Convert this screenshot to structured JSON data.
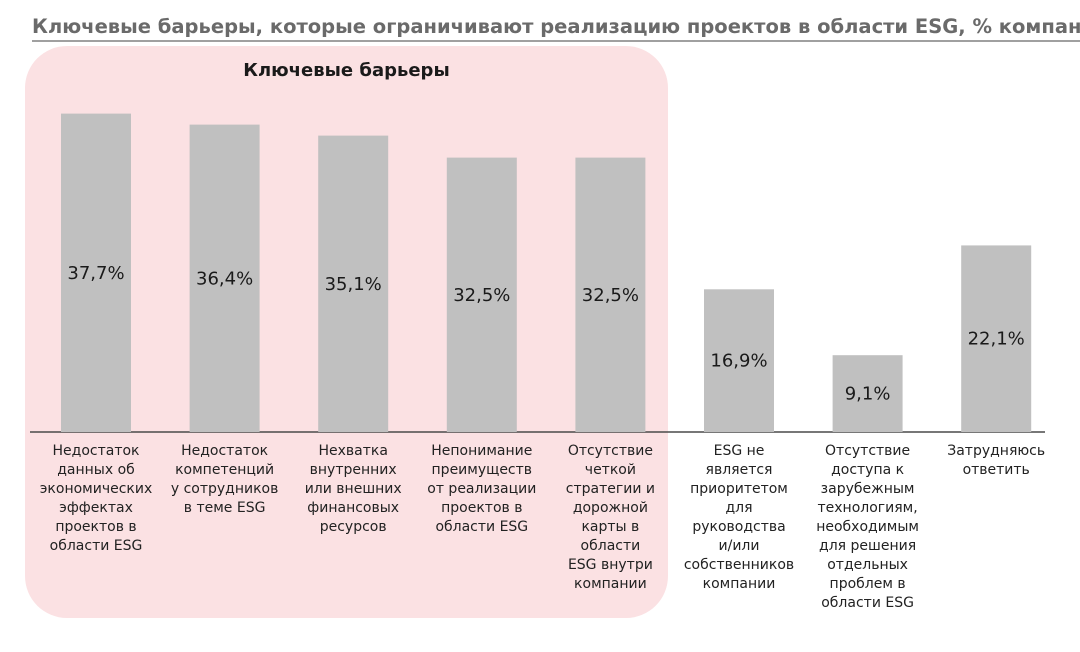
{
  "title": "Ключевые барьеры, которые ограничивают реализацию проектов в области ESG, % компаний",
  "highlight_label": "Ключевые барьеры",
  "colors": {
    "bar": "#c0c0c0",
    "highlight": "#fbe1e3",
    "axis": "#4a4a4a"
  },
  "chart_data": {
    "type": "bar",
    "title": "Ключевые барьеры, которые ограничивают реализацию проектов в области ESG, % компаний",
    "categories": [
      "Недостаток\nданных об\nэкономических\nэффектах\nпроектов в\nобласти  ESG",
      "Недостаток\nкомпетенций\nу сотрудников\nв теме ESG",
      "Нехватка\nвнутренних\nили внешних\nфинансовых\nресурсов",
      "Непонимание\nпреимуществ\nот реализации\nпроектов в\nобласти ESG",
      "Отсутствие\nчеткой\nстратегии и\nдорожной\nкарты в\nобласти\nESG внутри\nкомпании",
      "ESG не\nявляется\nприоритетом\nдля\nруководства\nи/или\nсобственников\nкомпании",
      "Отсутствие\nдоступа к\nзарубежным\nтехнологиям,\nнеобходимым\nдля решения\nотдельных\nпроблем в\nобласти ESG",
      "Затрудняюсь\nответить"
    ],
    "values": [
      37.7,
      36.4,
      35.1,
      32.5,
      32.5,
      16.9,
      9.1,
      22.1
    ],
    "value_labels": [
      "37,7%",
      "36,4%",
      "35,1%",
      "32,5%",
      "32,5%",
      "16,9%",
      "9,1%",
      "22,1%"
    ],
    "highlighted_categories": 5,
    "ylim": [
      0,
      40.5
    ],
    "xlabel": "",
    "ylabel": "",
    "grid": false,
    "legend": "none"
  }
}
